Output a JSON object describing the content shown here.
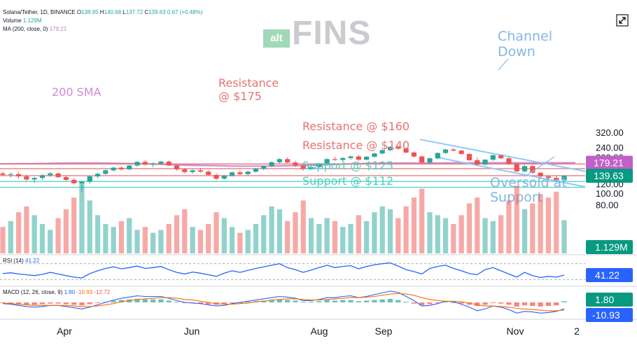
{
  "header": {
    "symbol_line": "Solana/Tether, 1D, BINANCE",
    "ohlc": [
      "O",
      "138.95",
      "H",
      "140.68",
      "L",
      "137.72",
      "C",
      "139.63",
      "0.67 (+0.48%)"
    ],
    "volume_label": "Volume",
    "volume_value": "1.129M",
    "ma_label": "MA (200, close, 0)",
    "ma_value": "179.21",
    "rsi_label": "RSI (14)",
    "rsi_value": "41.22",
    "macd_label": "MACD (12, 26, close, 9)",
    "macd_values": [
      "1.80",
      "-10.93",
      "-12.72"
    ]
  },
  "logo": {
    "badge": "alt",
    "word": "FINS"
  },
  "colors": {
    "up": "#26a69a",
    "down": "#ef5350",
    "resistance": "#e57373",
    "support": "#4dd0c4",
    "sma": "#d08ad8",
    "channel": "#90caf9",
    "rsi": "#2962ff",
    "macd": "#2962ff",
    "signal": "#ff6d00",
    "badge_price": "#089981",
    "badge_ma": "#c060c8"
  },
  "chart_data": [
    {
      "type": "line",
      "subtype": "candlestick",
      "title": "Solana/Tether, 1D, BINANCE",
      "y_scale": "log",
      "ylim": [
        78,
        322
      ],
      "y_ticks": [
        "320.00",
        "240.00",
        "200.00",
        "160.00",
        "120.00",
        "100.00",
        "80.00"
      ],
      "x_ticks": [
        "Apr",
        "Jun",
        "Aug",
        "Sep",
        "Nov",
        "2"
      ],
      "series": [
        {
          "name": "SOL/USDT",
          "kind": "ohlc",
          "ohlc": [
            [
              146,
              151,
              139,
              142
            ],
            [
              142,
              149,
              135,
              144
            ],
            [
              144,
              150,
              132,
              138
            ],
            [
              138,
              143,
              126,
              130
            ],
            [
              130,
              136,
              122,
              134
            ],
            [
              134,
              144,
              129,
              141
            ],
            [
              141,
              150,
              137,
              146
            ],
            [
              146,
              148,
              134,
              136
            ],
            [
              136,
              140,
              126,
              129
            ],
            [
              129,
              133,
              118,
              121
            ],
            [
              121,
              128,
              102,
              125
            ],
            [
              125,
              140,
              120,
              138
            ],
            [
              138,
              148,
              134,
              145
            ],
            [
              145,
              158,
              142,
              155
            ],
            [
              155,
              166,
              151,
              163
            ],
            [
              163,
              167,
              154,
              158
            ],
            [
              158,
              172,
              155,
              170
            ],
            [
              170,
              185,
              166,
              182
            ],
            [
              182,
              188,
              170,
              173
            ],
            [
              173,
              180,
              165,
              176
            ],
            [
              176,
              186,
              172,
              183
            ],
            [
              183,
              187,
              168,
              170
            ],
            [
              170,
              173,
              154,
              158
            ],
            [
              158,
              162,
              146,
              150
            ],
            [
              150,
              158,
              145,
              155
            ],
            [
              155,
              162,
              148,
              151
            ],
            [
              151,
              155,
              139,
              142
            ],
            [
              142,
              146,
              128,
              132
            ],
            [
              132,
              142,
              130,
              140
            ],
            [
              140,
              152,
              137,
              149
            ],
            [
              149,
              155,
              141,
              144
            ],
            [
              144,
              154,
              140,
              151
            ],
            [
              151,
              162,
              148,
              160
            ],
            [
              160,
              170,
              156,
              168
            ],
            [
              168,
              184,
              165,
              181
            ],
            [
              181,
              195,
              176,
              192
            ],
            [
              192,
              198,
              178,
              180
            ],
            [
              180,
              186,
              165,
              170
            ],
            [
              170,
              172,
              154,
              158
            ],
            [
              158,
              168,
              156,
              165
            ],
            [
              165,
              178,
              163,
              176
            ],
            [
              176,
              195,
              172,
              192
            ],
            [
              192,
              200,
              186,
              189
            ],
            [
              189,
              200,
              183,
              196
            ],
            [
              196,
              206,
              190,
              202
            ],
            [
              202,
              208,
              186,
              190
            ],
            [
              190,
              204,
              188,
              201
            ],
            [
              201,
              216,
              198,
              214
            ],
            [
              214,
              232,
              210,
              228
            ],
            [
              228,
              246,
              224,
              243
            ],
            [
              243,
              248,
              230,
              235
            ],
            [
              235,
              238,
              215,
              218
            ],
            [
              218,
              222,
              198,
              202
            ],
            [
              202,
              205,
              178,
              180
            ],
            [
              180,
              198,
              176,
              195
            ],
            [
              195,
              218,
              192,
              216
            ],
            [
              216,
              234,
              212,
              231
            ],
            [
              231,
              238,
              222,
              226
            ],
            [
              226,
              230,
              208,
              212
            ],
            [
              212,
              215,
              186,
              188
            ],
            [
              188,
              198,
              170,
              173
            ],
            [
              173,
              192,
              170,
              190
            ],
            [
              190,
              210,
              186,
              207
            ],
            [
              207,
              209,
              192,
              195
            ],
            [
              195,
              200,
              172,
              175
            ],
            [
              175,
              178,
              150,
              152
            ],
            [
              152,
              172,
              149,
              168
            ],
            [
              168,
              172,
              145,
              148
            ],
            [
              148,
              150,
              132,
              138
            ],
            [
              138,
              142,
              128,
              134
            ],
            [
              134,
              140,
              124,
              128
            ],
            [
              128,
              141,
              125,
              139.63
            ]
          ]
        },
        {
          "name": "200 SMA",
          "kind": "line",
          "values": [
            175,
            176,
            176,
            177,
            178,
            178,
            178,
            177,
            176,
            175,
            173,
            171,
            170,
            169,
            168,
            168,
            168,
            169,
            170,
            172,
            174,
            176,
            177,
            178,
            178,
            178,
            178,
            179,
            179,
            179,
            179,
            179,
            179,
            179,
            179.21
          ]
        }
      ],
      "levels": [
        {
          "label": "Resistance @ $175",
          "value": 175
        },
        {
          "label": "Resistance @ $160",
          "value": 160
        },
        {
          "label": "Resistance @ $140",
          "value": 140
        },
        {
          "label": "Support @ $125",
          "value": 125
        },
        {
          "label": "Support @ $112",
          "value": 112
        }
      ],
      "annotations": [
        "200 SMA",
        "Resistance @ $175",
        "Resistance @ $160",
        "Resistance @ $140",
        "Support @ $125",
        "Support @ $112",
        "Channel Down",
        "Oversold at Support"
      ],
      "price_badges": [
        {
          "label": "179.21",
          "value": 179.21
        },
        {
          "label": "139.63",
          "value": 139.63
        }
      ]
    },
    {
      "type": "bar",
      "title": "Volume",
      "badge": "1.129M",
      "values": [
        0.9,
        1.1,
        1.4,
        1.6,
        1.3,
        1.0,
        0.8,
        1.2,
        1.5,
        1.9,
        2.4,
        1.8,
        1.3,
        1.0,
        0.9,
        1.1,
        1.2,
        0.8,
        0.9,
        0.7,
        0.8,
        1.0,
        1.3,
        1.5,
        0.9,
        0.8,
        1.0,
        1.4,
        1.2,
        0.9,
        0.7,
        0.8,
        1.0,
        1.3,
        1.6,
        1.5,
        1.1,
        1.4,
        1.8,
        1.2,
        1.0,
        1.2,
        1.1,
        0.9,
        1.0,
        1.3,
        1.1,
        1.4,
        1.6,
        1.5,
        1.2,
        1.6,
        1.9,
        2.2,
        1.4,
        1.3,
        1.2,
        1.0,
        1.3,
        1.7,
        1.9,
        1.2,
        1.1,
        1.3,
        1.8,
        2.3,
        1.5,
        1.7,
        2.0,
        1.9,
        2.1,
        1.13
      ]
    },
    {
      "type": "line",
      "title": "RSI (14)",
      "ylim": [
        20,
        80
      ],
      "values": [
        45,
        47,
        44,
        42,
        40,
        43,
        48,
        44,
        40,
        36,
        34,
        45,
        52,
        58,
        62,
        57,
        60,
        64,
        58,
        60,
        63,
        55,
        48,
        44,
        49,
        46,
        42,
        38,
        46,
        52,
        48,
        53,
        58,
        62,
        66,
        70,
        60,
        55,
        48,
        54,
        60,
        66,
        60,
        63,
        65,
        57,
        63,
        67,
        70,
        72,
        64,
        55,
        50,
        44,
        58,
        63,
        66,
        58,
        52,
        45,
        42,
        55,
        60,
        52,
        44,
        36,
        48,
        40,
        35,
        38,
        36,
        41.22
      ],
      "badge": "41.22"
    },
    {
      "type": "bar",
      "title": "MACD (12, 26, close, 9)",
      "series": [
        {
          "name": "histogram",
          "values": [
            -1,
            -2,
            -3,
            -4,
            -4,
            -3,
            -2,
            -2,
            -3,
            -4,
            -5,
            -3,
            -1,
            1,
            3,
            4,
            5,
            6,
            5,
            5,
            5,
            3,
            1,
            -1,
            -1,
            -2,
            -3,
            -4,
            -3,
            -1,
            0,
            1,
            2,
            3,
            4,
            5,
            4,
            3,
            1,
            1,
            2,
            4,
            3,
            4,
            4,
            2,
            3,
            4,
            5,
            6,
            4,
            1,
            -2,
            -5,
            -3,
            -1,
            1,
            0,
            -2,
            -4,
            -6,
            -4,
            -1,
            -2,
            -4,
            -7,
            -5,
            -6,
            -7,
            -6,
            -5,
            1.8
          ]
        },
        {
          "name": "MACD",
          "values": [
            -2,
            -3,
            -5,
            -7,
            -8,
            -7,
            -5,
            -5,
            -7,
            -9,
            -11,
            -8,
            -4,
            0,
            4,
            7,
            9,
            11,
            10,
            10,
            10,
            7,
            3,
            0,
            -1,
            -2,
            -4,
            -6,
            -5,
            -2,
            0,
            2,
            4,
            6,
            8,
            10,
            9,
            7,
            3,
            3,
            5,
            8,
            8,
            10,
            11,
            8,
            10,
            13,
            16,
            19,
            17,
            10,
            3,
            -6,
            -5,
            -2,
            2,
            1,
            -3,
            -8,
            -14,
            -11,
            -6,
            -8,
            -12,
            -18,
            -15,
            -16,
            -18,
            -17,
            -15,
            -10.93
          ]
        },
        {
          "name": "Signal",
          "values": [
            -1,
            -2,
            -3,
            -4,
            -5,
            -5,
            -5,
            -5,
            -5,
            -6,
            -7,
            -7,
            -6,
            -4,
            -2,
            1,
            3,
            5,
            6,
            7,
            8,
            8,
            7,
            5,
            4,
            2,
            0,
            -2,
            -3,
            -3,
            -2,
            -1,
            1,
            2,
            4,
            5,
            6,
            6,
            5,
            4,
            4,
            5,
            6,
            7,
            8,
            8,
            9,
            10,
            12,
            14,
            15,
            14,
            12,
            8,
            5,
            3,
            2,
            2,
            1,
            -1,
            -4,
            -6,
            -6,
            -7,
            -8,
            -10,
            -11,
            -12,
            -13,
            -14,
            -14,
            -12.72
          ]
        }
      ],
      "badges": [
        "1.80",
        "-10.93"
      ]
    }
  ]
}
